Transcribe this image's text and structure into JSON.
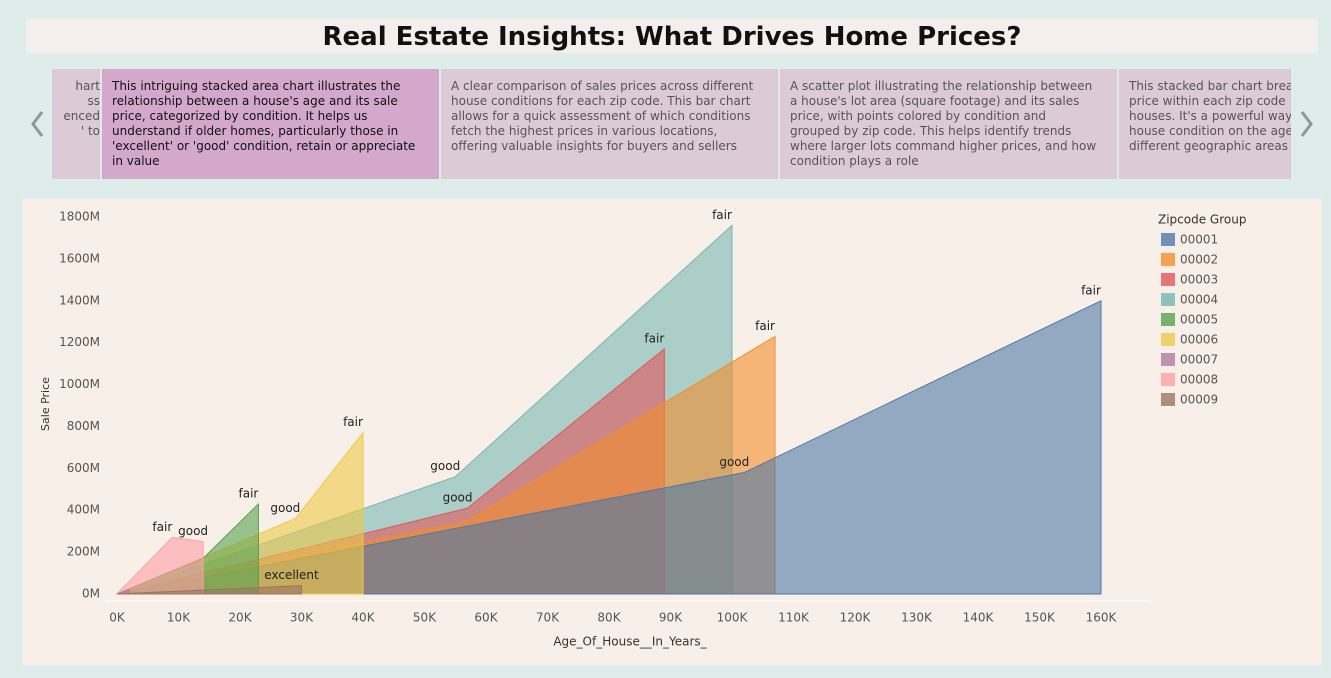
{
  "header": {
    "title": "Real Estate Insights: What Drives Home Prices?"
  },
  "story_points": [
    {
      "lines": [
        "hart",
        "ss",
        "enced",
        "' to"
      ]
    },
    {
      "lines": [
        "This intriguing stacked area chart illustrates the",
        "relationship between a house's age and its sale",
        "price, categorized by condition. It helps us",
        "understand if older homes, particularly those in",
        "'excellent' or 'good' condition, retain or appreciate",
        "in value"
      ]
    },
    {
      "lines": [
        "A clear comparison of sales prices across different",
        "house conditions for each zip code. This bar chart",
        "allows for a quick assessment of which conditions",
        "fetch the highest prices in various locations,",
        "offering valuable insights for buyers and sellers"
      ]
    },
    {
      "lines": [
        "A scatter plot illustrating the relationship between",
        "a house's lot area (square footage) and its sales",
        "price, with points colored by condition and",
        "grouped by zip code. This helps identify trends",
        "where larger lots command higher prices, and how",
        "condition plays a role"
      ]
    },
    {
      "lines": [
        "This stacked bar chart breaks",
        "price within each zip code",
        "houses. It's a powerful way",
        "house condition on the age",
        "different geographic areas"
      ]
    }
  ],
  "chart_data": {
    "type": "area",
    "x_label": "Age_Of_House__In_Years_",
    "y_label": "Sale Price",
    "legend_title": "Zipcode Group",
    "xlim": [
      0,
      160000
    ],
    "ylim": [
      0,
      1800000000
    ],
    "xticks": [
      {
        "value": 0,
        "label": "0K"
      },
      {
        "value": 10000,
        "label": "10K"
      },
      {
        "value": 20000,
        "label": "20K"
      },
      {
        "value": 30000,
        "label": "30K"
      },
      {
        "value": 40000,
        "label": "40K"
      },
      {
        "value": 50000,
        "label": "50K"
      },
      {
        "value": 60000,
        "label": "60K"
      },
      {
        "value": 70000,
        "label": "70K"
      },
      {
        "value": 80000,
        "label": "80K"
      },
      {
        "value": 90000,
        "label": "90K"
      },
      {
        "value": 100000,
        "label": "100K"
      },
      {
        "value": 110000,
        "label": "110K"
      },
      {
        "value": 120000,
        "label": "120K"
      },
      {
        "value": 130000,
        "label": "130K"
      },
      {
        "value": 140000,
        "label": "140K"
      },
      {
        "value": 150000,
        "label": "150K"
      },
      {
        "value": 160000,
        "label": "160K"
      }
    ],
    "yticks": [
      {
        "value": 0,
        "label": "0M"
      },
      {
        "value": 200000000,
        "label": "200M"
      },
      {
        "value": 400000000,
        "label": "400M"
      },
      {
        "value": 600000000,
        "label": "600M"
      },
      {
        "value": 800000000,
        "label": "800M"
      },
      {
        "value": 1000000000,
        "label": "1000M"
      },
      {
        "value": 1200000000,
        "label": "1200M"
      },
      {
        "value": 1400000000,
        "label": "1400M"
      },
      {
        "value": 1600000000,
        "label": "1600M"
      },
      {
        "value": 1800000000,
        "label": "1800M"
      }
    ],
    "series": [
      {
        "name": "00001",
        "color": "#4e79a7",
        "x": [
          0,
          102000,
          160000
        ],
        "values": [
          0,
          580000000,
          1400000000
        ],
        "labels": [
          null,
          "good",
          "fair"
        ]
      },
      {
        "name": "00002",
        "color": "#f28e2b",
        "x": [
          0,
          57000,
          107000
        ],
        "values": [
          0,
          350000000,
          1230000000
        ],
        "labels": [
          null,
          null,
          "fair"
        ]
      },
      {
        "name": "00003",
        "color": "#e15759",
        "x": [
          0,
          57000,
          89000
        ],
        "values": [
          0,
          410000000,
          1170000000
        ],
        "labels": [
          null,
          "good",
          "fair"
        ]
      },
      {
        "name": "00004",
        "color": "#76b7b2",
        "x": [
          0,
          55000,
          100000
        ],
        "values": [
          0,
          560000000,
          1760000000
        ],
        "labels": [
          null,
          "good",
          "fair"
        ]
      },
      {
        "name": "00005",
        "color": "#59a14f",
        "x": [
          0,
          14000,
          23000
        ],
        "values": [
          0,
          170000000,
          430000000
        ],
        "labels": [
          null,
          null,
          "fair"
        ]
      },
      {
        "name": "00006",
        "color": "#edc948",
        "x": [
          0,
          29000,
          40000
        ],
        "values": [
          0,
          360000000,
          770000000
        ],
        "labels": [
          null,
          "good",
          "fair"
        ]
      },
      {
        "name": "00007",
        "color": "#b07aa1",
        "x": [
          0,
          2000
        ],
        "values": [
          0,
          20000000
        ],
        "labels": [
          null,
          null
        ]
      },
      {
        "name": "00008",
        "color": "#ff9da7",
        "x": [
          0,
          9000,
          14000
        ],
        "values": [
          0,
          270000000,
          250000000
        ],
        "labels": [
          null,
          "fair",
          "good"
        ]
      },
      {
        "name": "00009",
        "color": "#9c755f",
        "x": [
          0,
          30000
        ],
        "values": [
          0,
          40000000
        ],
        "labels": [
          null,
          "excellent"
        ]
      }
    ]
  }
}
